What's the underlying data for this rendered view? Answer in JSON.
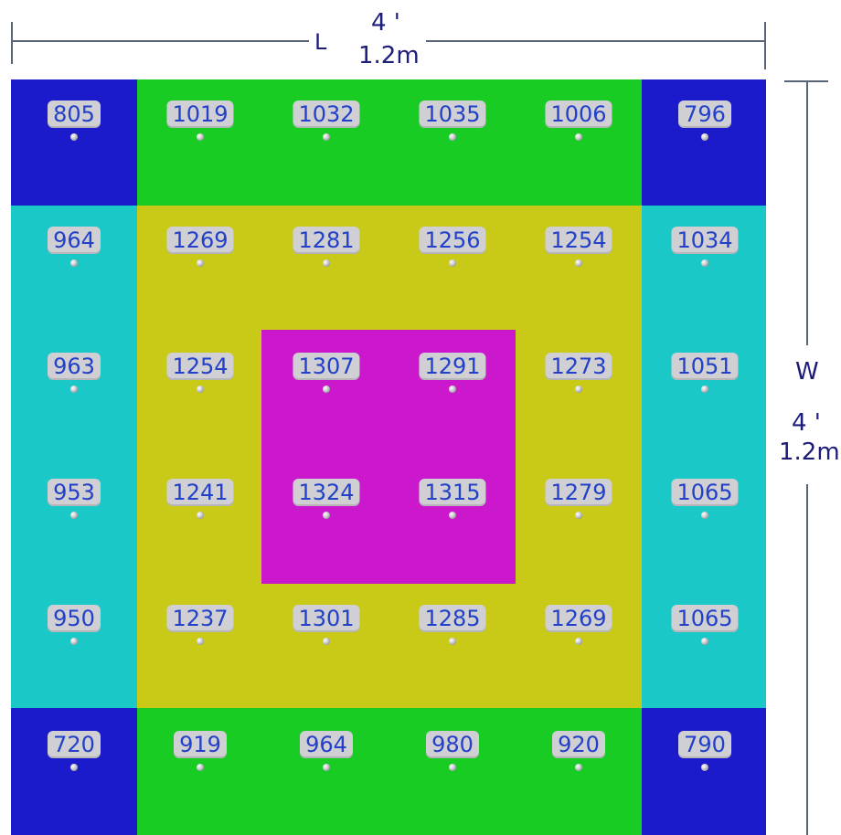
{
  "title": "",
  "dimensions": {
    "length_letter": "L",
    "length_ft": "4 '",
    "length_m": "1.2m",
    "width_letter": "W",
    "width_ft": "4 '",
    "width_m": "1.2m"
  },
  "zone_colors": {
    "corner": "#1b1bcc",
    "edge_short": "#18cc24",
    "edge_long": "#1ac8c8",
    "inner": "#c9c918",
    "center": "#cc18cc"
  },
  "readings_rows": [
    [
      "805",
      "1019",
      "1032",
      "1035",
      "1006",
      "796"
    ],
    [
      "964",
      "1269",
      "1281",
      "1256",
      "1254",
      "1034"
    ],
    [
      "963",
      "1254",
      "1307",
      "1291",
      "1273",
      "1051"
    ],
    [
      "953",
      "1241",
      "1324",
      "1315",
      "1279",
      "1065"
    ],
    [
      "950",
      "1237",
      "1301",
      "1285",
      "1269",
      "1065"
    ],
    [
      "720",
      "919",
      "964",
      "980",
      "920",
      "790"
    ]
  ]
}
